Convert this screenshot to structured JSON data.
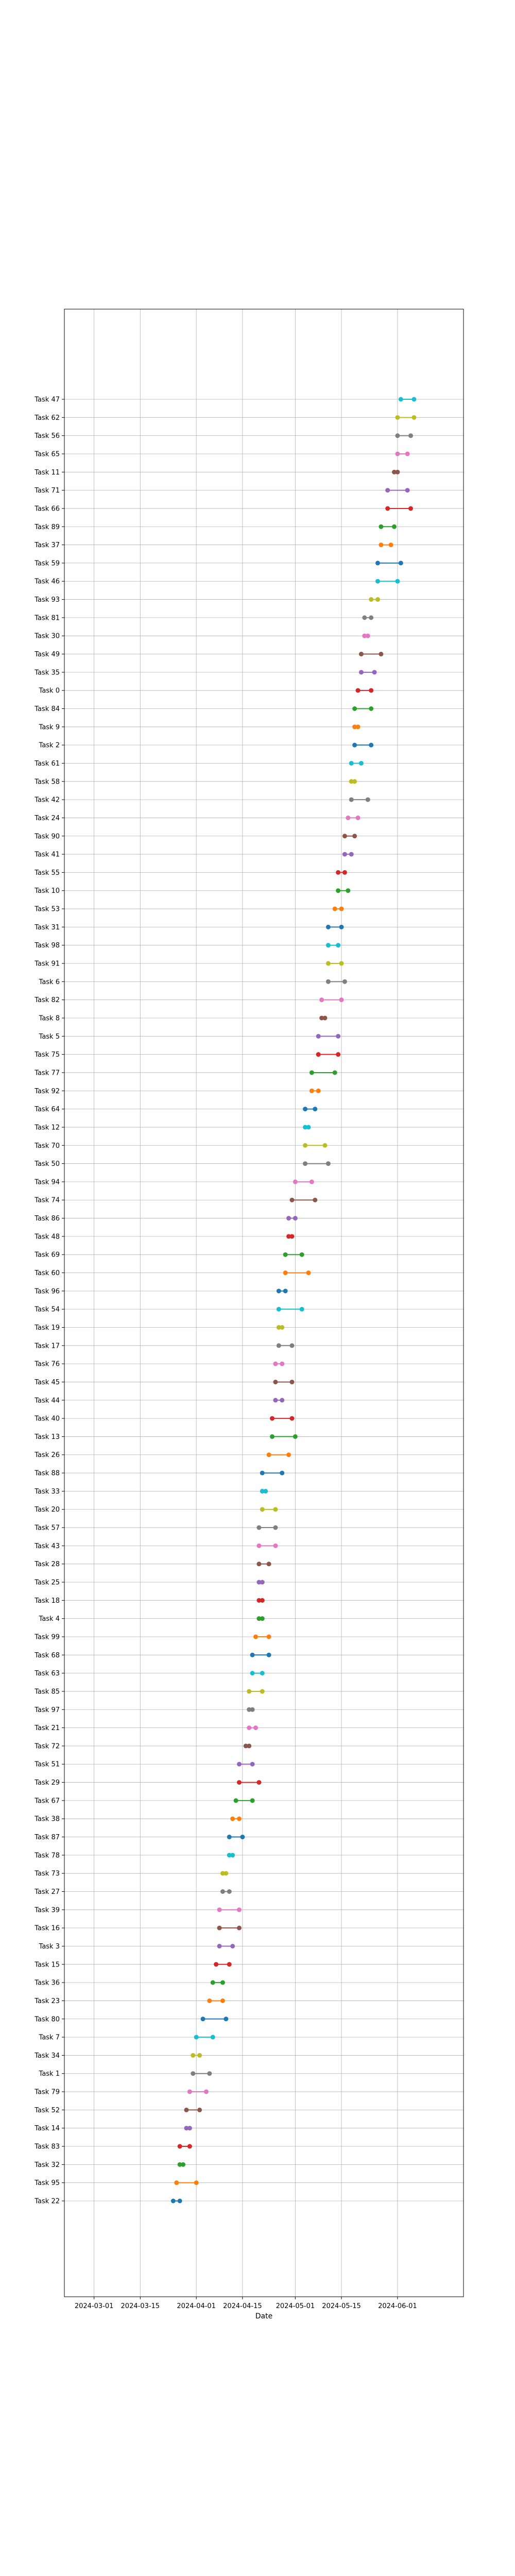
{
  "chart_data": {
    "type": "dumbbell",
    "xlabel": "Date",
    "ylabel": "",
    "title": "",
    "grid": true,
    "x_is_date": true,
    "xlim": [
      "2024-02-21",
      "2024-06-21"
    ],
    "x_ticks": [
      "2024-03-01",
      "2024-03-15",
      "2024-04-01",
      "2024-04-15",
      "2024-05-01",
      "2024-05-15",
      "2024-06-01"
    ],
    "tasks": [
      {
        "name": "Task 47",
        "start": "2024-06-02",
        "end": "2024-06-06",
        "color": "#17becf"
      },
      {
        "name": "Task 62",
        "start": "2024-06-01",
        "end": "2024-06-06",
        "color": "#bcbd22"
      },
      {
        "name": "Task 56",
        "start": "2024-06-01",
        "end": "2024-06-05",
        "color": "#7f7f7f"
      },
      {
        "name": "Task 65",
        "start": "2024-06-01",
        "end": "2024-06-04",
        "color": "#e377c2"
      },
      {
        "name": "Task 11",
        "start": "2024-05-31",
        "end": "2024-06-01",
        "color": "#8c564b"
      },
      {
        "name": "Task 71",
        "start": "2024-05-29",
        "end": "2024-06-04",
        "color": "#9467bd"
      },
      {
        "name": "Task 66",
        "start": "2024-05-29",
        "end": "2024-06-05",
        "color": "#d62728"
      },
      {
        "name": "Task 89",
        "start": "2024-05-27",
        "end": "2024-05-31",
        "color": "#2ca02c"
      },
      {
        "name": "Task 37",
        "start": "2024-05-27",
        "end": "2024-05-30",
        "color": "#ff7f0e"
      },
      {
        "name": "Task 59",
        "start": "2024-05-26",
        "end": "2024-06-02",
        "color": "#1f77b4"
      },
      {
        "name": "Task 46",
        "start": "2024-05-26",
        "end": "2024-06-01",
        "color": "#17becf"
      },
      {
        "name": "Task 93",
        "start": "2024-05-24",
        "end": "2024-05-26",
        "color": "#bcbd22"
      },
      {
        "name": "Task 81",
        "start": "2024-05-22",
        "end": "2024-05-24",
        "color": "#7f7f7f"
      },
      {
        "name": "Task 30",
        "start": "2024-05-22",
        "end": "2024-05-23",
        "color": "#e377c2"
      },
      {
        "name": "Task 49",
        "start": "2024-05-21",
        "end": "2024-05-27",
        "color": "#8c564b"
      },
      {
        "name": "Task 35",
        "start": "2024-05-21",
        "end": "2024-05-25",
        "color": "#9467bd"
      },
      {
        "name": "Task 0",
        "start": "2024-05-20",
        "end": "2024-05-24",
        "color": "#d62728"
      },
      {
        "name": "Task 84",
        "start": "2024-05-19",
        "end": "2024-05-24",
        "color": "#2ca02c"
      },
      {
        "name": "Task 9",
        "start": "2024-05-19",
        "end": "2024-05-20",
        "color": "#ff7f0e"
      },
      {
        "name": "Task 2",
        "start": "2024-05-19",
        "end": "2024-05-24",
        "color": "#1f77b4"
      },
      {
        "name": "Task 61",
        "start": "2024-05-18",
        "end": "2024-05-21",
        "color": "#17becf"
      },
      {
        "name": "Task 58",
        "start": "2024-05-18",
        "end": "2024-05-19",
        "color": "#bcbd22"
      },
      {
        "name": "Task 42",
        "start": "2024-05-18",
        "end": "2024-05-23",
        "color": "#7f7f7f"
      },
      {
        "name": "Task 24",
        "start": "2024-05-17",
        "end": "2024-05-20",
        "color": "#e377c2"
      },
      {
        "name": "Task 90",
        "start": "2024-05-16",
        "end": "2024-05-19",
        "color": "#8c564b"
      },
      {
        "name": "Task 41",
        "start": "2024-05-16",
        "end": "2024-05-18",
        "color": "#9467bd"
      },
      {
        "name": "Task 55",
        "start": "2024-05-14",
        "end": "2024-05-16",
        "color": "#d62728"
      },
      {
        "name": "Task 10",
        "start": "2024-05-14",
        "end": "2024-05-17",
        "color": "#2ca02c"
      },
      {
        "name": "Task 53",
        "start": "2024-05-13",
        "end": "2024-05-15",
        "color": "#ff7f0e"
      },
      {
        "name": "Task 31",
        "start": "2024-05-11",
        "end": "2024-05-15",
        "color": "#1f77b4"
      },
      {
        "name": "Task 98",
        "start": "2024-05-11",
        "end": "2024-05-14",
        "color": "#17becf"
      },
      {
        "name": "Task 91",
        "start": "2024-05-11",
        "end": "2024-05-15",
        "color": "#bcbd22"
      },
      {
        "name": "Task 6",
        "start": "2024-05-11",
        "end": "2024-05-16",
        "color": "#7f7f7f"
      },
      {
        "name": "Task 82",
        "start": "2024-05-09",
        "end": "2024-05-15",
        "color": "#e377c2"
      },
      {
        "name": "Task 8",
        "start": "2024-05-09",
        "end": "2024-05-10",
        "color": "#8c564b"
      },
      {
        "name": "Task 5",
        "start": "2024-05-08",
        "end": "2024-05-14",
        "color": "#9467bd"
      },
      {
        "name": "Task 75",
        "start": "2024-05-08",
        "end": "2024-05-14",
        "color": "#d62728"
      },
      {
        "name": "Task 77",
        "start": "2024-05-06",
        "end": "2024-05-13",
        "color": "#2ca02c"
      },
      {
        "name": "Task 92",
        "start": "2024-05-06",
        "end": "2024-05-08",
        "color": "#ff7f0e"
      },
      {
        "name": "Task 64",
        "start": "2024-05-04",
        "end": "2024-05-07",
        "color": "#1f77b4"
      },
      {
        "name": "Task 12",
        "start": "2024-05-04",
        "end": "2024-05-05",
        "color": "#17becf"
      },
      {
        "name": "Task 70",
        "start": "2024-05-04",
        "end": "2024-05-10",
        "color": "#bcbd22"
      },
      {
        "name": "Task 50",
        "start": "2024-05-04",
        "end": "2024-05-11",
        "color": "#7f7f7f"
      },
      {
        "name": "Task 94",
        "start": "2024-05-01",
        "end": "2024-05-06",
        "color": "#e377c2"
      },
      {
        "name": "Task 74",
        "start": "2024-04-30",
        "end": "2024-05-07",
        "color": "#8c564b"
      },
      {
        "name": "Task 86",
        "start": "2024-04-29",
        "end": "2024-05-01",
        "color": "#9467bd"
      },
      {
        "name": "Task 48",
        "start": "2024-04-29",
        "end": "2024-04-30",
        "color": "#d62728"
      },
      {
        "name": "Task 69",
        "start": "2024-04-28",
        "end": "2024-05-03",
        "color": "#2ca02c"
      },
      {
        "name": "Task 60",
        "start": "2024-04-28",
        "end": "2024-05-05",
        "color": "#ff7f0e"
      },
      {
        "name": "Task 96",
        "start": "2024-04-26",
        "end": "2024-04-28",
        "color": "#1f77b4"
      },
      {
        "name": "Task 54",
        "start": "2024-04-26",
        "end": "2024-05-03",
        "color": "#17becf"
      },
      {
        "name": "Task 19",
        "start": "2024-04-26",
        "end": "2024-04-27",
        "color": "#bcbd22"
      },
      {
        "name": "Task 17",
        "start": "2024-04-26",
        "end": "2024-04-30",
        "color": "#7f7f7f"
      },
      {
        "name": "Task 76",
        "start": "2024-04-25",
        "end": "2024-04-27",
        "color": "#e377c2"
      },
      {
        "name": "Task 45",
        "start": "2024-04-25",
        "end": "2024-04-30",
        "color": "#8c564b"
      },
      {
        "name": "Task 44",
        "start": "2024-04-25",
        "end": "2024-04-27",
        "color": "#9467bd"
      },
      {
        "name": "Task 40",
        "start": "2024-04-24",
        "end": "2024-04-30",
        "color": "#d62728"
      },
      {
        "name": "Task 13",
        "start": "2024-04-24",
        "end": "2024-05-01",
        "color": "#2ca02c"
      },
      {
        "name": "Task 26",
        "start": "2024-04-23",
        "end": "2024-04-29",
        "color": "#ff7f0e"
      },
      {
        "name": "Task 88",
        "start": "2024-04-21",
        "end": "2024-04-27",
        "color": "#1f77b4"
      },
      {
        "name": "Task 33",
        "start": "2024-04-21",
        "end": "2024-04-22",
        "color": "#17becf"
      },
      {
        "name": "Task 20",
        "start": "2024-04-21",
        "end": "2024-04-25",
        "color": "#bcbd22"
      },
      {
        "name": "Task 57",
        "start": "2024-04-20",
        "end": "2024-04-25",
        "color": "#7f7f7f"
      },
      {
        "name": "Task 43",
        "start": "2024-04-20",
        "end": "2024-04-25",
        "color": "#e377c2"
      },
      {
        "name": "Task 28",
        "start": "2024-04-20",
        "end": "2024-04-23",
        "color": "#8c564b"
      },
      {
        "name": "Task 25",
        "start": "2024-04-20",
        "end": "2024-04-21",
        "color": "#9467bd"
      },
      {
        "name": "Task 18",
        "start": "2024-04-20",
        "end": "2024-04-21",
        "color": "#d62728"
      },
      {
        "name": "Task 4",
        "start": "2024-04-20",
        "end": "2024-04-21",
        "color": "#2ca02c"
      },
      {
        "name": "Task 99",
        "start": "2024-04-19",
        "end": "2024-04-23",
        "color": "#ff7f0e"
      },
      {
        "name": "Task 68",
        "start": "2024-04-18",
        "end": "2024-04-23",
        "color": "#1f77b4"
      },
      {
        "name": "Task 63",
        "start": "2024-04-18",
        "end": "2024-04-21",
        "color": "#17becf"
      },
      {
        "name": "Task 85",
        "start": "2024-04-17",
        "end": "2024-04-21",
        "color": "#bcbd22"
      },
      {
        "name": "Task 97",
        "start": "2024-04-17",
        "end": "2024-04-18",
        "color": "#7f7f7f"
      },
      {
        "name": "Task 21",
        "start": "2024-04-17",
        "end": "2024-04-19",
        "color": "#e377c2"
      },
      {
        "name": "Task 72",
        "start": "2024-04-16",
        "end": "2024-04-17",
        "color": "#8c564b"
      },
      {
        "name": "Task 51",
        "start": "2024-04-14",
        "end": "2024-04-18",
        "color": "#9467bd"
      },
      {
        "name": "Task 29",
        "start": "2024-04-14",
        "end": "2024-04-20",
        "color": "#d62728"
      },
      {
        "name": "Task 67",
        "start": "2024-04-13",
        "end": "2024-04-18",
        "color": "#2ca02c"
      },
      {
        "name": "Task 38",
        "start": "2024-04-12",
        "end": "2024-04-14",
        "color": "#ff7f0e"
      },
      {
        "name": "Task 87",
        "start": "2024-04-11",
        "end": "2024-04-15",
        "color": "#1f77b4"
      },
      {
        "name": "Task 78",
        "start": "2024-04-11",
        "end": "2024-04-12",
        "color": "#17becf"
      },
      {
        "name": "Task 73",
        "start": "2024-04-09",
        "end": "2024-04-10",
        "color": "#bcbd22"
      },
      {
        "name": "Task 27",
        "start": "2024-04-09",
        "end": "2024-04-11",
        "color": "#7f7f7f"
      },
      {
        "name": "Task 39",
        "start": "2024-04-08",
        "end": "2024-04-14",
        "color": "#e377c2"
      },
      {
        "name": "Task 16",
        "start": "2024-04-08",
        "end": "2024-04-14",
        "color": "#8c564b"
      },
      {
        "name": "Task 3",
        "start": "2024-04-08",
        "end": "2024-04-12",
        "color": "#9467bd"
      },
      {
        "name": "Task 15",
        "start": "2024-04-07",
        "end": "2024-04-11",
        "color": "#d62728"
      },
      {
        "name": "Task 36",
        "start": "2024-04-06",
        "end": "2024-04-09",
        "color": "#2ca02c"
      },
      {
        "name": "Task 23",
        "start": "2024-04-05",
        "end": "2024-04-09",
        "color": "#ff7f0e"
      },
      {
        "name": "Task 80",
        "start": "2024-04-03",
        "end": "2024-04-10",
        "color": "#1f77b4"
      },
      {
        "name": "Task 7",
        "start": "2024-04-01",
        "end": "2024-04-06",
        "color": "#17becf"
      },
      {
        "name": "Task 34",
        "start": "2024-03-31",
        "end": "2024-04-02",
        "color": "#bcbd22"
      },
      {
        "name": "Task 1",
        "start": "2024-03-31",
        "end": "2024-04-05",
        "color": "#7f7f7f"
      },
      {
        "name": "Task 79",
        "start": "2024-03-30",
        "end": "2024-04-04",
        "color": "#e377c2"
      },
      {
        "name": "Task 52",
        "start": "2024-03-29",
        "end": "2024-04-02",
        "color": "#8c564b"
      },
      {
        "name": "Task 14",
        "start": "2024-03-29",
        "end": "2024-03-30",
        "color": "#9467bd"
      },
      {
        "name": "Task 83",
        "start": "2024-03-27",
        "end": "2024-03-30",
        "color": "#d62728"
      },
      {
        "name": "Task 32",
        "start": "2024-03-27",
        "end": "2024-03-28",
        "color": "#2ca02c"
      },
      {
        "name": "Task 95",
        "start": "2024-03-26",
        "end": "2024-04-01",
        "color": "#ff7f0e"
      },
      {
        "name": "Task 22",
        "start": "2024-03-25",
        "end": "2024-03-27",
        "color": "#1f77b4"
      }
    ]
  }
}
